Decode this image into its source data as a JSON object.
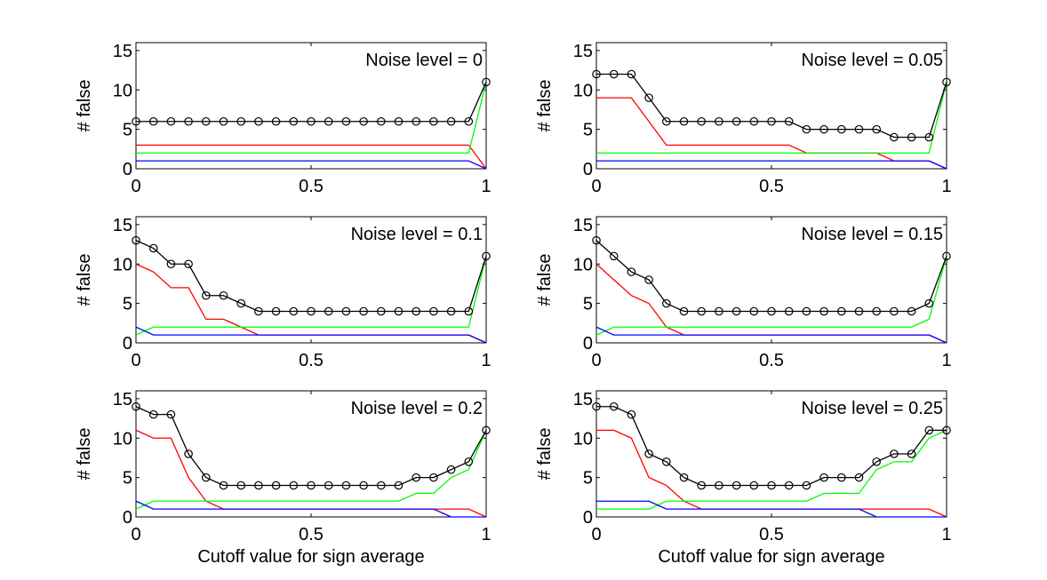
{
  "chart_data": [
    {
      "type": "line",
      "annotation": "Noise level = 0",
      "ylabel": "# false",
      "xlabel": "",
      "xlim": [
        0,
        1
      ],
      "ylim": [
        0,
        16
      ],
      "xticks": [
        "0",
        "0.5",
        "1"
      ],
      "yticks": [
        "0",
        "5",
        "10",
        "15"
      ],
      "x": [
        0,
        0.05,
        0.1,
        0.15,
        0.2,
        0.25,
        0.3,
        0.35,
        0.4,
        0.45,
        0.5,
        0.55,
        0.6,
        0.65,
        0.7,
        0.75,
        0.8,
        0.85,
        0.9,
        0.95,
        1
      ],
      "series": [
        {
          "name": "red",
          "color": "#ff0000",
          "markers": false,
          "values": [
            3,
            3,
            3,
            3,
            3,
            3,
            3,
            3,
            3,
            3,
            3,
            3,
            3,
            3,
            3,
            3,
            3,
            3,
            3,
            3,
            0
          ]
        },
        {
          "name": "green",
          "color": "#00ff00",
          "markers": false,
          "values": [
            2,
            2,
            2,
            2,
            2,
            2,
            2,
            2,
            2,
            2,
            2,
            2,
            2,
            2,
            2,
            2,
            2,
            2,
            2,
            2,
            11
          ]
        },
        {
          "name": "blue",
          "color": "#0000ff",
          "markers": false,
          "values": [
            1,
            1,
            1,
            1,
            1,
            1,
            1,
            1,
            1,
            1,
            1,
            1,
            1,
            1,
            1,
            1,
            1,
            1,
            1,
            1,
            0
          ]
        },
        {
          "name": "total",
          "color": "#000000",
          "markers": true,
          "values": [
            6,
            6,
            6,
            6,
            6,
            6,
            6,
            6,
            6,
            6,
            6,
            6,
            6,
            6,
            6,
            6,
            6,
            6,
            6,
            6,
            11
          ]
        }
      ]
    },
    {
      "type": "line",
      "annotation": "Noise level = 0.05",
      "ylabel": "# false",
      "xlabel": "",
      "xlim": [
        0,
        1
      ],
      "ylim": [
        0,
        16
      ],
      "xticks": [
        "0",
        "0.5",
        "1"
      ],
      "yticks": [
        "0",
        "5",
        "10",
        "15"
      ],
      "x": [
        0,
        0.05,
        0.1,
        0.15,
        0.2,
        0.25,
        0.3,
        0.35,
        0.4,
        0.45,
        0.5,
        0.55,
        0.6,
        0.65,
        0.7,
        0.75,
        0.8,
        0.85,
        0.9,
        0.95,
        1
      ],
      "series": [
        {
          "name": "red",
          "color": "#ff0000",
          "markers": false,
          "values": [
            9,
            9,
            9,
            6,
            3,
            3,
            3,
            3,
            3,
            3,
            3,
            3,
            2,
            2,
            2,
            2,
            2,
            1,
            1,
            1,
            0
          ]
        },
        {
          "name": "green",
          "color": "#00ff00",
          "markers": false,
          "values": [
            2,
            2,
            2,
            2,
            2,
            2,
            2,
            2,
            2,
            2,
            2,
            2,
            2,
            2,
            2,
            2,
            2,
            2,
            2,
            2,
            11
          ]
        },
        {
          "name": "blue",
          "color": "#0000ff",
          "markers": false,
          "values": [
            1,
            1,
            1,
            1,
            1,
            1,
            1,
            1,
            1,
            1,
            1,
            1,
            1,
            1,
            1,
            1,
            1,
            1,
            1,
            1,
            0
          ]
        },
        {
          "name": "total",
          "color": "#000000",
          "markers": true,
          "values": [
            12,
            12,
            12,
            9,
            6,
            6,
            6,
            6,
            6,
            6,
            6,
            6,
            5,
            5,
            5,
            5,
            5,
            4,
            4,
            4,
            11
          ]
        }
      ]
    },
    {
      "type": "line",
      "annotation": "Noise level = 0.1",
      "ylabel": "# false",
      "xlabel": "",
      "xlim": [
        0,
        1
      ],
      "ylim": [
        0,
        16
      ],
      "xticks": [
        "0",
        "0.5",
        "1"
      ],
      "yticks": [
        "0",
        "5",
        "10",
        "15"
      ],
      "x": [
        0,
        0.05,
        0.1,
        0.15,
        0.2,
        0.25,
        0.3,
        0.35,
        0.4,
        0.45,
        0.5,
        0.55,
        0.6,
        0.65,
        0.7,
        0.75,
        0.8,
        0.85,
        0.9,
        0.95,
        1
      ],
      "series": [
        {
          "name": "red",
          "color": "#ff0000",
          "markers": false,
          "values": [
            10,
            9,
            7,
            7,
            3,
            3,
            2,
            1,
            1,
            1,
            1,
            1,
            1,
            1,
            1,
            1,
            1,
            1,
            1,
            1,
            0
          ]
        },
        {
          "name": "green",
          "color": "#00ff00",
          "markers": false,
          "values": [
            1,
            2,
            2,
            2,
            2,
            2,
            2,
            2,
            2,
            2,
            2,
            2,
            2,
            2,
            2,
            2,
            2,
            2,
            2,
            2,
            11
          ]
        },
        {
          "name": "blue",
          "color": "#0000ff",
          "markers": false,
          "values": [
            2,
            1,
            1,
            1,
            1,
            1,
            1,
            1,
            1,
            1,
            1,
            1,
            1,
            1,
            1,
            1,
            1,
            1,
            1,
            1,
            0
          ]
        },
        {
          "name": "total",
          "color": "#000000",
          "markers": true,
          "values": [
            13,
            12,
            10,
            10,
            6,
            6,
            5,
            4,
            4,
            4,
            4,
            4,
            4,
            4,
            4,
            4,
            4,
            4,
            4,
            4,
            11
          ]
        }
      ]
    },
    {
      "type": "line",
      "annotation": "Noise level = 0.15",
      "ylabel": "# false",
      "xlabel": "",
      "xlim": [
        0,
        1
      ],
      "ylim": [
        0,
        16
      ],
      "xticks": [
        "0",
        "0.5",
        "1"
      ],
      "yticks": [
        "0",
        "5",
        "10",
        "15"
      ],
      "x": [
        0,
        0.05,
        0.1,
        0.15,
        0.2,
        0.25,
        0.3,
        0.35,
        0.4,
        0.45,
        0.5,
        0.55,
        0.6,
        0.65,
        0.7,
        0.75,
        0.8,
        0.85,
        0.9,
        0.95,
        1
      ],
      "series": [
        {
          "name": "red",
          "color": "#ff0000",
          "markers": false,
          "values": [
            10,
            8,
            6,
            5,
            2,
            1,
            1,
            1,
            1,
            1,
            1,
            1,
            1,
            1,
            1,
            1,
            1,
            1,
            1,
            1,
            0
          ]
        },
        {
          "name": "green",
          "color": "#00ff00",
          "markers": false,
          "values": [
            1,
            2,
            2,
            2,
            2,
            2,
            2,
            2,
            2,
            2,
            2,
            2,
            2,
            2,
            2,
            2,
            2,
            2,
            2,
            3,
            11
          ]
        },
        {
          "name": "blue",
          "color": "#0000ff",
          "markers": false,
          "values": [
            2,
            1,
            1,
            1,
            1,
            1,
            1,
            1,
            1,
            1,
            1,
            1,
            1,
            1,
            1,
            1,
            1,
            1,
            1,
            1,
            0
          ]
        },
        {
          "name": "total",
          "color": "#000000",
          "markers": true,
          "values": [
            13,
            11,
            9,
            8,
            5,
            4,
            4,
            4,
            4,
            4,
            4,
            4,
            4,
            4,
            4,
            4,
            4,
            4,
            4,
            5,
            11
          ]
        }
      ]
    },
    {
      "type": "line",
      "annotation": "Noise level = 0.2",
      "ylabel": "# false",
      "xlabel": "Cutoff value for sign average",
      "xlim": [
        0,
        1
      ],
      "ylim": [
        0,
        16
      ],
      "xticks": [
        "0",
        "0.5",
        "1"
      ],
      "yticks": [
        "0",
        "5",
        "10",
        "15"
      ],
      "x": [
        0,
        0.05,
        0.1,
        0.15,
        0.2,
        0.25,
        0.3,
        0.35,
        0.4,
        0.45,
        0.5,
        0.55,
        0.6,
        0.65,
        0.7,
        0.75,
        0.8,
        0.85,
        0.9,
        0.95,
        1
      ],
      "series": [
        {
          "name": "red",
          "color": "#ff0000",
          "markers": false,
          "values": [
            11,
            10,
            10,
            5,
            2,
            1,
            1,
            1,
            1,
            1,
            1,
            1,
            1,
            1,
            1,
            1,
            1,
            1,
            1,
            1,
            0
          ]
        },
        {
          "name": "green",
          "color": "#00ff00",
          "markers": false,
          "values": [
            1,
            2,
            2,
            2,
            2,
            2,
            2,
            2,
            2,
            2,
            2,
            2,
            2,
            2,
            2,
            2,
            3,
            3,
            5,
            6,
            11
          ]
        },
        {
          "name": "blue",
          "color": "#0000ff",
          "markers": false,
          "values": [
            2,
            1,
            1,
            1,
            1,
            1,
            1,
            1,
            1,
            1,
            1,
            1,
            1,
            1,
            1,
            1,
            1,
            1,
            0,
            0,
            0
          ]
        },
        {
          "name": "total",
          "color": "#000000",
          "markers": true,
          "values": [
            14,
            13,
            13,
            8,
            5,
            4,
            4,
            4,
            4,
            4,
            4,
            4,
            4,
            4,
            4,
            4,
            5,
            5,
            6,
            7,
            11
          ]
        }
      ]
    },
    {
      "type": "line",
      "annotation": "Noise level = 0.25",
      "ylabel": "# false",
      "xlabel": "Cutoff value for sign average",
      "xlim": [
        0,
        1
      ],
      "ylim": [
        0,
        16
      ],
      "xticks": [
        "0",
        "0.5",
        "1"
      ],
      "yticks": [
        "0",
        "5",
        "10",
        "15"
      ],
      "x": [
        0,
        0.05,
        0.1,
        0.15,
        0.2,
        0.25,
        0.3,
        0.35,
        0.4,
        0.45,
        0.5,
        0.55,
        0.6,
        0.65,
        0.7,
        0.75,
        0.8,
        0.85,
        0.9,
        0.95,
        1
      ],
      "series": [
        {
          "name": "red",
          "color": "#ff0000",
          "markers": false,
          "values": [
            11,
            11,
            10,
            5,
            4,
            2,
            1,
            1,
            1,
            1,
            1,
            1,
            1,
            1,
            1,
            1,
            1,
            1,
            1,
            1,
            0
          ]
        },
        {
          "name": "green",
          "color": "#00ff00",
          "markers": false,
          "values": [
            1,
            1,
            1,
            1,
            2,
            2,
            2,
            2,
            2,
            2,
            2,
            2,
            2,
            3,
            3,
            3,
            6,
            7,
            7,
            10,
            11
          ]
        },
        {
          "name": "blue",
          "color": "#0000ff",
          "markers": false,
          "values": [
            2,
            2,
            2,
            2,
            1,
            1,
            1,
            1,
            1,
            1,
            1,
            1,
            1,
            1,
            1,
            1,
            0,
            0,
            0,
            0,
            0
          ]
        },
        {
          "name": "total",
          "color": "#000000",
          "markers": true,
          "values": [
            14,
            14,
            13,
            8,
            7,
            5,
            4,
            4,
            4,
            4,
            4,
            4,
            4,
            5,
            5,
            5,
            7,
            8,
            8,
            11,
            11
          ]
        }
      ]
    }
  ]
}
